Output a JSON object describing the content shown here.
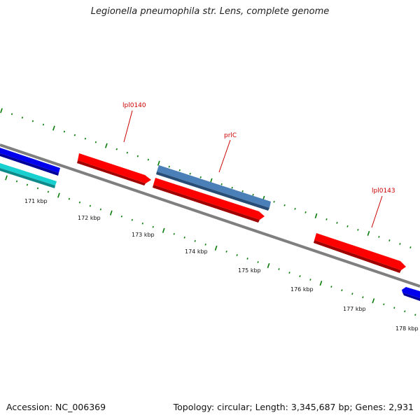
{
  "title": "Legionella pneumophila str. Lens, complete genome",
  "footer": {
    "accession": "Accession: NC_006369",
    "summary": "Topology: circular; Length: 3,345,687 bp; Genes: 2,931"
  },
  "colors": {
    "backbone": "#7f7f7f",
    "tick": "#0a7a0a",
    "gene_red": "#ff0000",
    "gene_blue": "#0000ee",
    "gene_cyan": "#19d0d0",
    "gene_steel": "#4a7fb8",
    "label": "#cc0000"
  },
  "ruler": {
    "labels": [
      "171 kbp",
      "172 kbp",
      "173 kbp",
      "174 kbp",
      "175 kbp",
      "176 kbp",
      "177 kbp",
      "178 kbp"
    ]
  },
  "gene_labels": [
    "lpl0140",
    "prlC",
    "lpl0143"
  ],
  "genes": [
    {
      "strand": "reverse",
      "color": "blue",
      "label": ""
    },
    {
      "strand": "reverse",
      "color": "cyan",
      "label": ""
    },
    {
      "strand": "forward",
      "color": "red",
      "label": "lpl0140"
    },
    {
      "strand": "forward",
      "color": "steel",
      "label": "prlC"
    },
    {
      "strand": "forward",
      "color": "red",
      "label": ""
    },
    {
      "strand": "forward",
      "color": "red",
      "label": "lpl0143"
    },
    {
      "strand": "reverse",
      "color": "blue",
      "label": ""
    }
  ]
}
